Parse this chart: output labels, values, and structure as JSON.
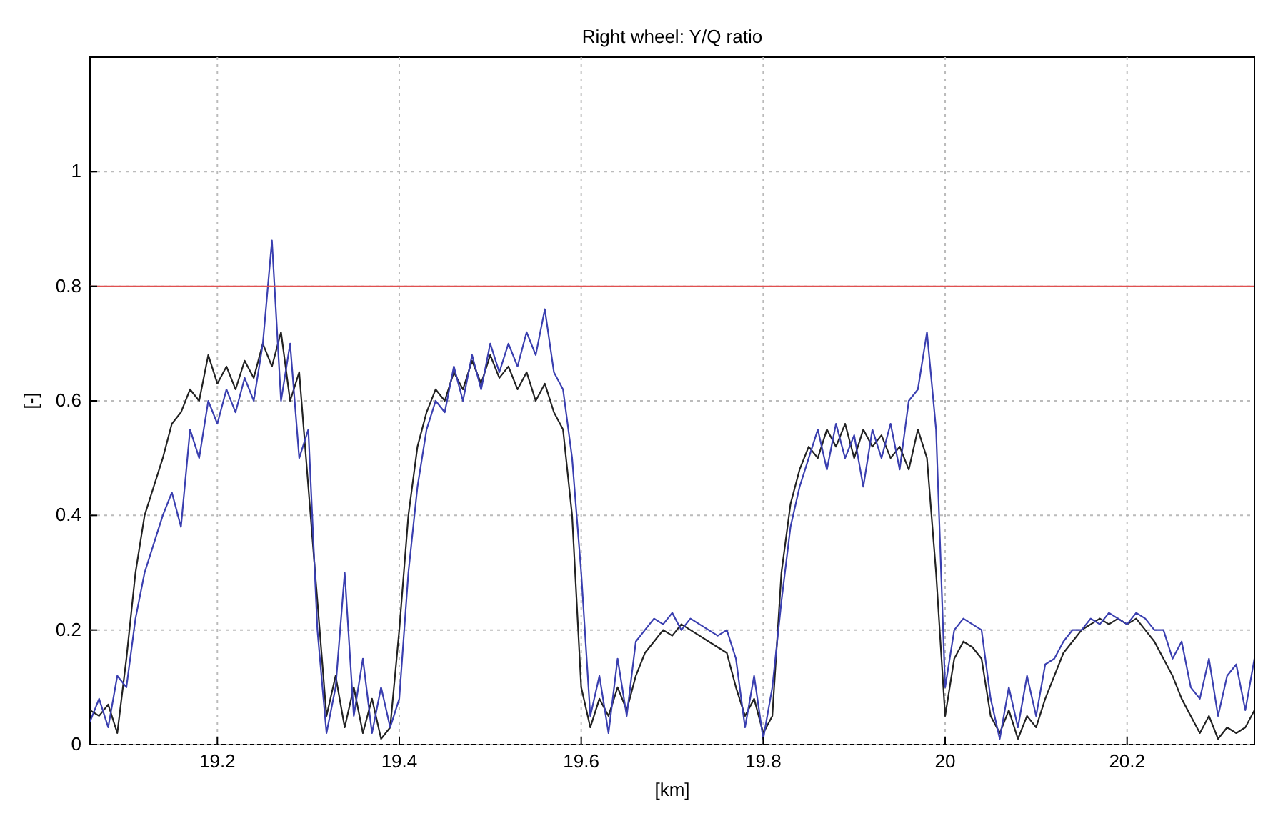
{
  "chart_data": {
    "type": "line",
    "title": "Right wheel: Y/Q ratio",
    "xlabel": "[km]",
    "ylabel": "[-]",
    "x": [
      19.06,
      19.07,
      19.08,
      19.09,
      19.1,
      19.11,
      19.12,
      19.13,
      19.14,
      19.15,
      19.16,
      19.17,
      19.18,
      19.19,
      19.2,
      19.21,
      19.22,
      19.23,
      19.24,
      19.25,
      19.26,
      19.27,
      19.28,
      19.29,
      19.3,
      19.31,
      19.32,
      19.33,
      19.34,
      19.35,
      19.36,
      19.37,
      19.38,
      19.39,
      19.4,
      19.41,
      19.42,
      19.43,
      19.44,
      19.45,
      19.46,
      19.47,
      19.48,
      19.49,
      19.5,
      19.51,
      19.52,
      19.53,
      19.54,
      19.55,
      19.56,
      19.57,
      19.58,
      19.59,
      19.6,
      19.61,
      19.62,
      19.63,
      19.64,
      19.65,
      19.66,
      19.67,
      19.68,
      19.69,
      19.7,
      19.71,
      19.72,
      19.73,
      19.74,
      19.75,
      19.76,
      19.77,
      19.78,
      19.79,
      19.8,
      19.81,
      19.82,
      19.83,
      19.84,
      19.85,
      19.86,
      19.87,
      19.88,
      19.89,
      19.9,
      19.91,
      19.92,
      19.93,
      19.94,
      19.95,
      19.96,
      19.97,
      19.98,
      19.99,
      20,
      20.01,
      20.02,
      20.03,
      20.04,
      20.05,
      20.06,
      20.07,
      20.08,
      20.09,
      20.1,
      20.11,
      20.12,
      20.13,
      20.14,
      20.15,
      20.16,
      20.17,
      20.18,
      20.19,
      20.2,
      20.21,
      20.22,
      20.23,
      20.24,
      20.25,
      20.26,
      20.27,
      20.28,
      20.29,
      20.3,
      20.31,
      20.32,
      20.33,
      20.34
    ],
    "series": [
      {
        "color": "#222222",
        "values": [
          0.06,
          0.05,
          0.07,
          0.02,
          0.15,
          0.3,
          0.4,
          0.45,
          0.5,
          0.56,
          0.58,
          0.62,
          0.6,
          0.68,
          0.63,
          0.66,
          0.62,
          0.67,
          0.64,
          0.7,
          0.66,
          0.72,
          0.6,
          0.65,
          0.45,
          0.25,
          0.05,
          0.12,
          0.03,
          0.1,
          0.02,
          0.08,
          0.01,
          0.03,
          0.2,
          0.4,
          0.52,
          0.58,
          0.62,
          0.6,
          0.65,
          0.62,
          0.67,
          0.63,
          0.68,
          0.64,
          0.66,
          0.62,
          0.65,
          0.6,
          0.63,
          0.58,
          0.55,
          0.4,
          0.1,
          0.03,
          0.08,
          0.05,
          0.1,
          0.06,
          0.12,
          0.16,
          0.18,
          0.2,
          0.19,
          0.21,
          0.2,
          0.19,
          0.18,
          0.17,
          0.16,
          0.1,
          0.05,
          0.08,
          0.02,
          0.05,
          0.3,
          0.42,
          0.48,
          0.52,
          0.5,
          0.55,
          0.52,
          0.56,
          0.5,
          0.55,
          0.52,
          0.54,
          0.5,
          0.52,
          0.48,
          0.55,
          0.5,
          0.3,
          0.05,
          0.15,
          0.18,
          0.17,
          0.15,
          0.05,
          0.02,
          0.06,
          0.01,
          0.05,
          0.03,
          0.08,
          0.12,
          0.16,
          0.18,
          0.2,
          0.21,
          0.22,
          0.21,
          0.22,
          0.21,
          0.22,
          0.2,
          0.18,
          0.15,
          0.12,
          0.08,
          0.05,
          0.02,
          0.05,
          0.01,
          0.03,
          0.02,
          0.03,
          0.06
        ]
      },
      {
        "color": "#3a3fb0",
        "values": [
          0.04,
          0.08,
          0.03,
          0.12,
          0.1,
          0.22,
          0.3,
          0.35,
          0.4,
          0.44,
          0.38,
          0.55,
          0.5,
          0.6,
          0.56,
          0.62,
          0.58,
          0.64,
          0.6,
          0.7,
          0.88,
          0.6,
          0.7,
          0.5,
          0.55,
          0.2,
          0.02,
          0.1,
          0.3,
          0.05,
          0.15,
          0.02,
          0.1,
          0.03,
          0.08,
          0.3,
          0.45,
          0.55,
          0.6,
          0.58,
          0.66,
          0.6,
          0.68,
          0.62,
          0.7,
          0.65,
          0.7,
          0.66,
          0.72,
          0.68,
          0.76,
          0.65,
          0.62,
          0.5,
          0.3,
          0.05,
          0.12,
          0.02,
          0.15,
          0.05,
          0.18,
          0.2,
          0.22,
          0.21,
          0.23,
          0.2,
          0.22,
          0.21,
          0.2,
          0.19,
          0.2,
          0.15,
          0.03,
          0.12,
          0.01,
          0.1,
          0.25,
          0.38,
          0.45,
          0.5,
          0.55,
          0.48,
          0.56,
          0.5,
          0.54,
          0.45,
          0.55,
          0.5,
          0.56,
          0.48,
          0.6,
          0.62,
          0.72,
          0.55,
          0.1,
          0.2,
          0.22,
          0.21,
          0.2,
          0.08,
          0.01,
          0.1,
          0.03,
          0.12,
          0.05,
          0.14,
          0.15,
          0.18,
          0.2,
          0.2,
          0.22,
          0.21,
          0.23,
          0.22,
          0.21,
          0.23,
          0.22,
          0.2,
          0.2,
          0.15,
          0.18,
          0.1,
          0.08,
          0.15,
          0.05,
          0.12,
          0.14,
          0.06,
          0.15
        ]
      }
    ],
    "xlim": [
      19.06,
      20.34
    ],
    "xticks": [
      19.2,
      19.4,
      19.6,
      19.8,
      20,
      20.2
    ],
    "ylim": [
      0,
      1.2
    ],
    "yticks": [
      0,
      0.2,
      0.4,
      0.6,
      0.8,
      1
    ],
    "grid": true,
    "ref_lines": [
      {
        "axis": "y",
        "value": 0.8,
        "color": "#e05050"
      }
    ]
  }
}
